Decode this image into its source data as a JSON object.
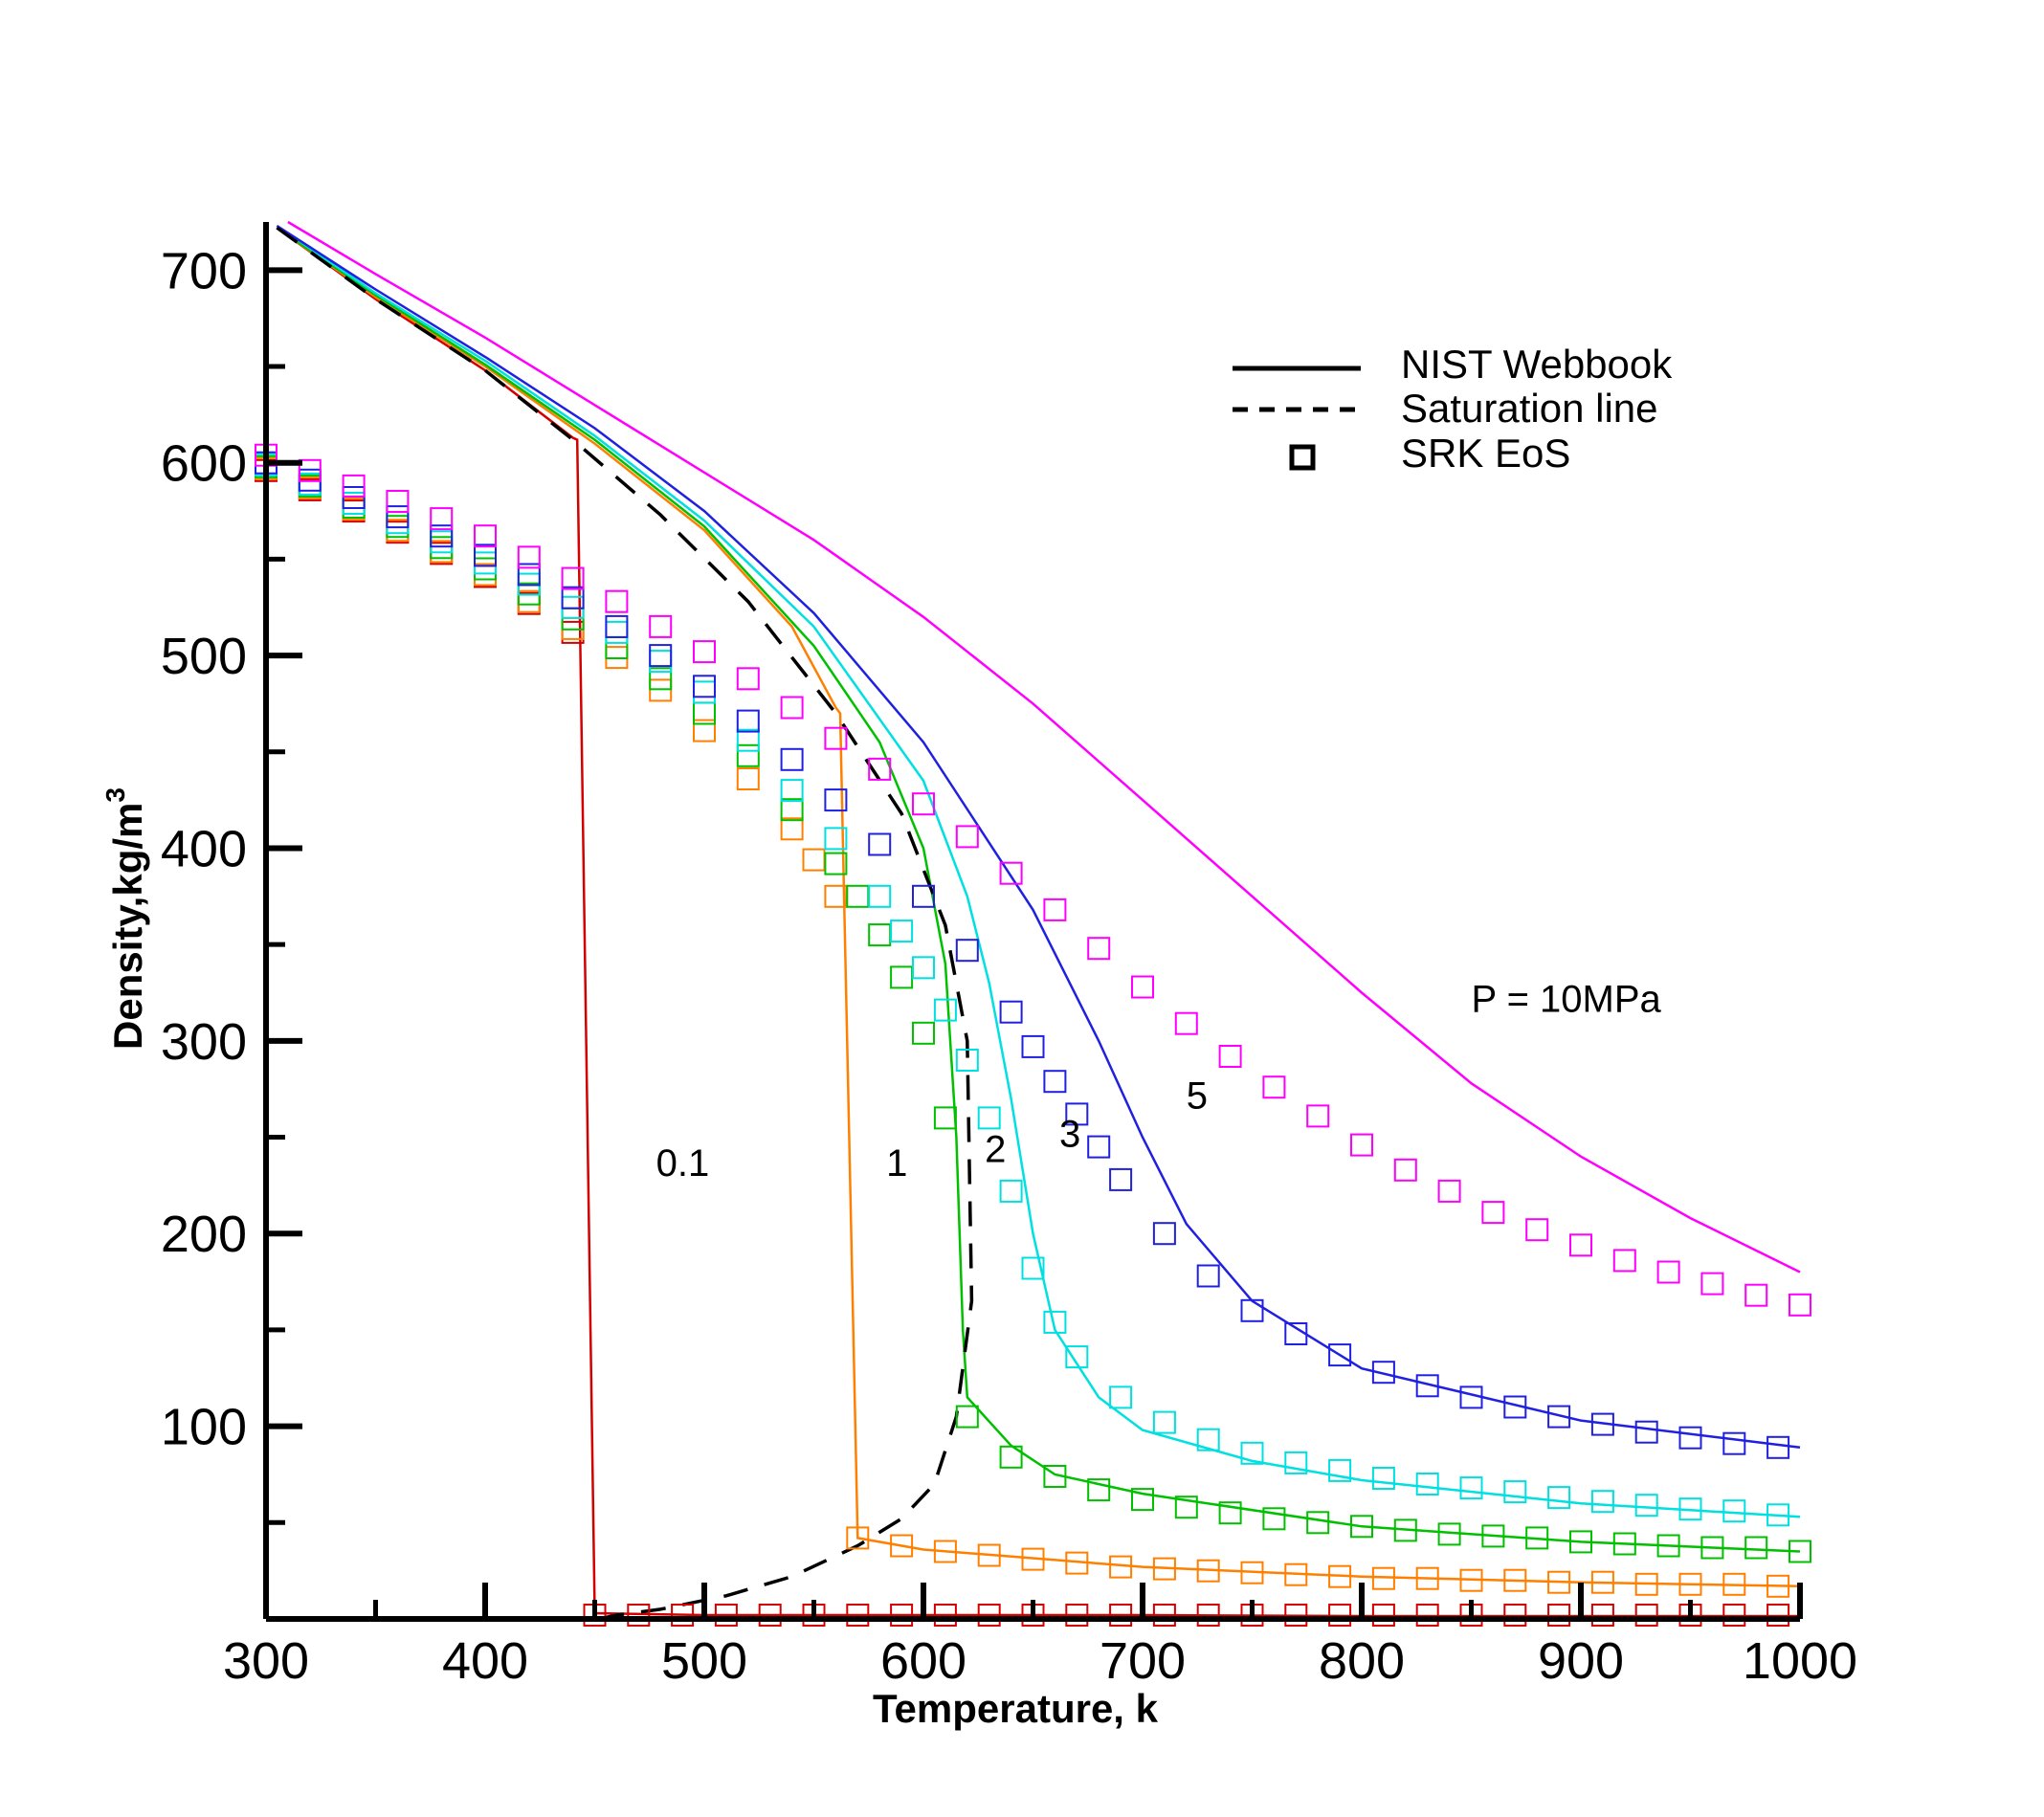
{
  "chart_data": {
    "type": "line",
    "title": "",
    "xlabel": "Temperature, k",
    "ylabel_main": "Density,kg/m",
    "ylabel_sup": "3",
    "xlim": [
      300,
      1000
    ],
    "ylim": [
      0,
      725
    ],
    "xticks": [
      300,
      400,
      500,
      600,
      700,
      800,
      900,
      1000
    ],
    "yticks": [
      100,
      200,
      300,
      400,
      500,
      600,
      700
    ],
    "legend": {
      "position": "top-right",
      "entries": [
        {
          "label": "NIST Webbook",
          "style": "solid"
        },
        {
          "label": "Saturation line",
          "style": "dashed"
        },
        {
          "label": "SRK EoS",
          "style": "square"
        }
      ]
    },
    "annotations": [
      {
        "text": "0.1",
        "x": 478,
        "y": 230
      },
      {
        "text": "1",
        "x": 583,
        "y": 230
      },
      {
        "text": "2",
        "x": 628,
        "y": 237
      },
      {
        "text": "3",
        "x": 662,
        "y": 245
      },
      {
        "text": "5",
        "x": 720,
        "y": 265
      },
      {
        "text": "P = 10MPa",
        "x": 850,
        "y": 315
      }
    ],
    "saturation_line": {
      "x": [
        305,
        350,
        400,
        440,
        480,
        520,
        560,
        590,
        610,
        620,
        622,
        615,
        605,
        590,
        570,
        540,
        510,
        480,
        460,
        452
      ],
      "y": [
        722,
        685,
        648,
        612,
        573,
        528,
        470,
        418,
        360,
        300,
        165,
        105,
        70,
        52,
        38,
        22,
        12,
        5,
        2,
        0
      ]
    },
    "series": [
      {
        "name": "0.1",
        "color": "#d40000",
        "nist": {
          "x": [
            305,
            350,
            400,
            440,
            442,
            450,
            500,
            600,
            700,
            800,
            900,
            1000
          ],
          "y": [
            722,
            685,
            648,
            613,
            612,
            3,
            2,
            2,
            2,
            1.5,
            1.5,
            1.5
          ]
        },
        "srk": {
          "x": [
            300,
            320,
            340,
            360,
            380,
            400,
            420,
            440,
            450,
            470,
            490,
            510,
            530,
            550,
            570,
            590,
            610,
            630,
            650,
            670,
            690,
            710,
            730,
            750,
            770,
            790,
            810,
            830,
            850,
            870,
            890,
            910,
            930,
            950,
            970,
            990
          ],
          "y": [
            596,
            586,
            575,
            564,
            553,
            541,
            527,
            512,
            2,
            2,
            2,
            2,
            2,
            2,
            2,
            2,
            2,
            2,
            2,
            2,
            2,
            2,
            2,
            2,
            2,
            2,
            2,
            2,
            2,
            2,
            2,
            2,
            2,
            2,
            2,
            2
          ]
        }
      },
      {
        "name": "1",
        "color": "#ff8000",
        "nist": {
          "x": [
            305,
            350,
            400,
            450,
            500,
            540,
            560,
            562,
            570,
            600,
            700,
            800,
            900,
            1000
          ],
          "y": [
            722,
            686,
            650,
            610,
            565,
            515,
            473,
            470,
            42,
            36,
            27,
            22,
            19,
            17
          ]
        },
        "srk": {
          "x": [
            300,
            320,
            340,
            360,
            380,
            400,
            420,
            440,
            460,
            480,
            500,
            520,
            540,
            550,
            560,
            570,
            590,
            610,
            630,
            650,
            670,
            690,
            710,
            730,
            750,
            770,
            790,
            810,
            830,
            850,
            870,
            890,
            910,
            930,
            950,
            970,
            990
          ],
          "y": [
            597,
            587,
            576,
            565,
            554,
            542,
            528,
            514,
            499,
            482,
            461,
            436,
            410,
            394,
            375,
            42,
            38,
            35,
            33,
            31,
            29,
            27,
            26,
            25,
            24,
            23,
            22,
            21,
            21,
            20,
            20,
            19,
            19,
            18,
            18,
            18,
            17
          ]
        }
      },
      {
        "name": "2",
        "color": "#00c000",
        "nist": {
          "x": [
            305,
            350,
            400,
            450,
            500,
            550,
            580,
            600,
            610,
            615,
            618,
            620,
            640,
            660,
            700,
            800,
            900,
            1000
          ],
          "y": [
            722,
            687,
            651,
            612,
            567,
            505,
            455,
            400,
            340,
            250,
            150,
            115,
            90,
            75,
            65,
            48,
            40,
            35
          ]
        },
        "srk": {
          "x": [
            300,
            320,
            340,
            360,
            380,
            400,
            420,
            440,
            460,
            480,
            500,
            520,
            540,
            560,
            570,
            580,
            590,
            600,
            610,
            620,
            640,
            660,
            680,
            700,
            720,
            740,
            760,
            780,
            800,
            820,
            840,
            860,
            880,
            900,
            920,
            940,
            960,
            980,
            1000
          ],
          "y": [
            598,
            588,
            577,
            567,
            556,
            545,
            532,
            519,
            504,
            488,
            470,
            448,
            420,
            392,
            375,
            355,
            333,
            304,
            260,
            105,
            84,
            74,
            67,
            62,
            58,
            55,
            52,
            50,
            48,
            46,
            44,
            43,
            42,
            40,
            39,
            38,
            37,
            37,
            35
          ]
        }
      },
      {
        "name": "3",
        "color": "#00e0e0",
        "nist": {
          "x": [
            305,
            350,
            400,
            450,
            500,
            550,
            600,
            620,
            630,
            640,
            650,
            660,
            680,
            700,
            750,
            800,
            900,
            1000
          ],
          "y": [
            723,
            688,
            653,
            614,
            570,
            515,
            435,
            375,
            330,
            270,
            200,
            150,
            115,
            98,
            82,
            72,
            60,
            53
          ]
        },
        "srk": {
          "x": [
            300,
            320,
            340,
            360,
            380,
            400,
            420,
            440,
            460,
            480,
            500,
            520,
            540,
            560,
            580,
            590,
            600,
            610,
            620,
            630,
            640,
            650,
            660,
            670,
            690,
            710,
            730,
            750,
            770,
            790,
            810,
            830,
            850,
            870,
            890,
            910,
            930,
            950,
            970,
            990
          ],
          "y": [
            599,
            589,
            579,
            569,
            559,
            548,
            537,
            525,
            512,
            497,
            481,
            456,
            430,
            405,
            375,
            357,
            338,
            316,
            290,
            260,
            222,
            182,
            154,
            136,
            115,
            102,
            93,
            86,
            81,
            77,
            73,
            70,
            68,
            66,
            63,
            61,
            59,
            57,
            56,
            54
          ]
        }
      },
      {
        "name": "5",
        "color": "#2020e0",
        "nist": {
          "x": [
            305,
            350,
            400,
            450,
            500,
            550,
            600,
            650,
            680,
            700,
            720,
            750,
            800,
            900,
            1000
          ],
          "y": [
            723,
            690,
            655,
            618,
            575,
            522,
            455,
            368,
            300,
            250,
            205,
            165,
            130,
            103,
            89
          ]
        },
        "srk": {
          "x": [
            300,
            320,
            340,
            360,
            380,
            400,
            420,
            440,
            460,
            480,
            500,
            520,
            540,
            560,
            580,
            600,
            620,
            640,
            650,
            660,
            670,
            680,
            690,
            710,
            730,
            750,
            770,
            790,
            810,
            830,
            850,
            870,
            890,
            910,
            930,
            950,
            970,
            990
          ],
          "y": [
            600,
            591,
            582,
            572,
            562,
            552,
            542,
            530,
            515,
            500,
            484,
            466,
            446,
            425,
            402,
            375,
            347,
            315,
            297,
            279,
            262,
            245,
            228,
            200,
            178,
            160,
            148,
            137,
            128,
            121,
            115,
            110,
            105,
            101,
            97,
            94,
            91,
            89
          ]
        }
      },
      {
        "name": "10",
        "color": "#ff00ff",
        "nist": {
          "x": [
            310,
            350,
            400,
            450,
            500,
            550,
            600,
            650,
            700,
            750,
            800,
            850,
            900,
            950,
            1000
          ],
          "y": [
            725,
            698,
            665,
            630,
            595,
            560,
            520,
            475,
            425,
            375,
            325,
            278,
            240,
            208,
            180
          ]
        },
        "srk": {
          "x": [
            300,
            320,
            340,
            360,
            380,
            400,
            420,
            440,
            460,
            480,
            500,
            520,
            540,
            560,
            580,
            600,
            620,
            640,
            660,
            680,
            700,
            720,
            740,
            760,
            780,
            800,
            820,
            840,
            860,
            880,
            900,
            920,
            940,
            960,
            980,
            1000
          ],
          "y": [
            604,
            596,
            588,
            580,
            571,
            562,
            551,
            540,
            528,
            515,
            502,
            488,
            473,
            457,
            441,
            423,
            406,
            387,
            368,
            348,
            328,
            309,
            292,
            276,
            261,
            246,
            233,
            222,
            211,
            202,
            194,
            186,
            180,
            174,
            168,
            163
          ]
        }
      }
    ]
  }
}
